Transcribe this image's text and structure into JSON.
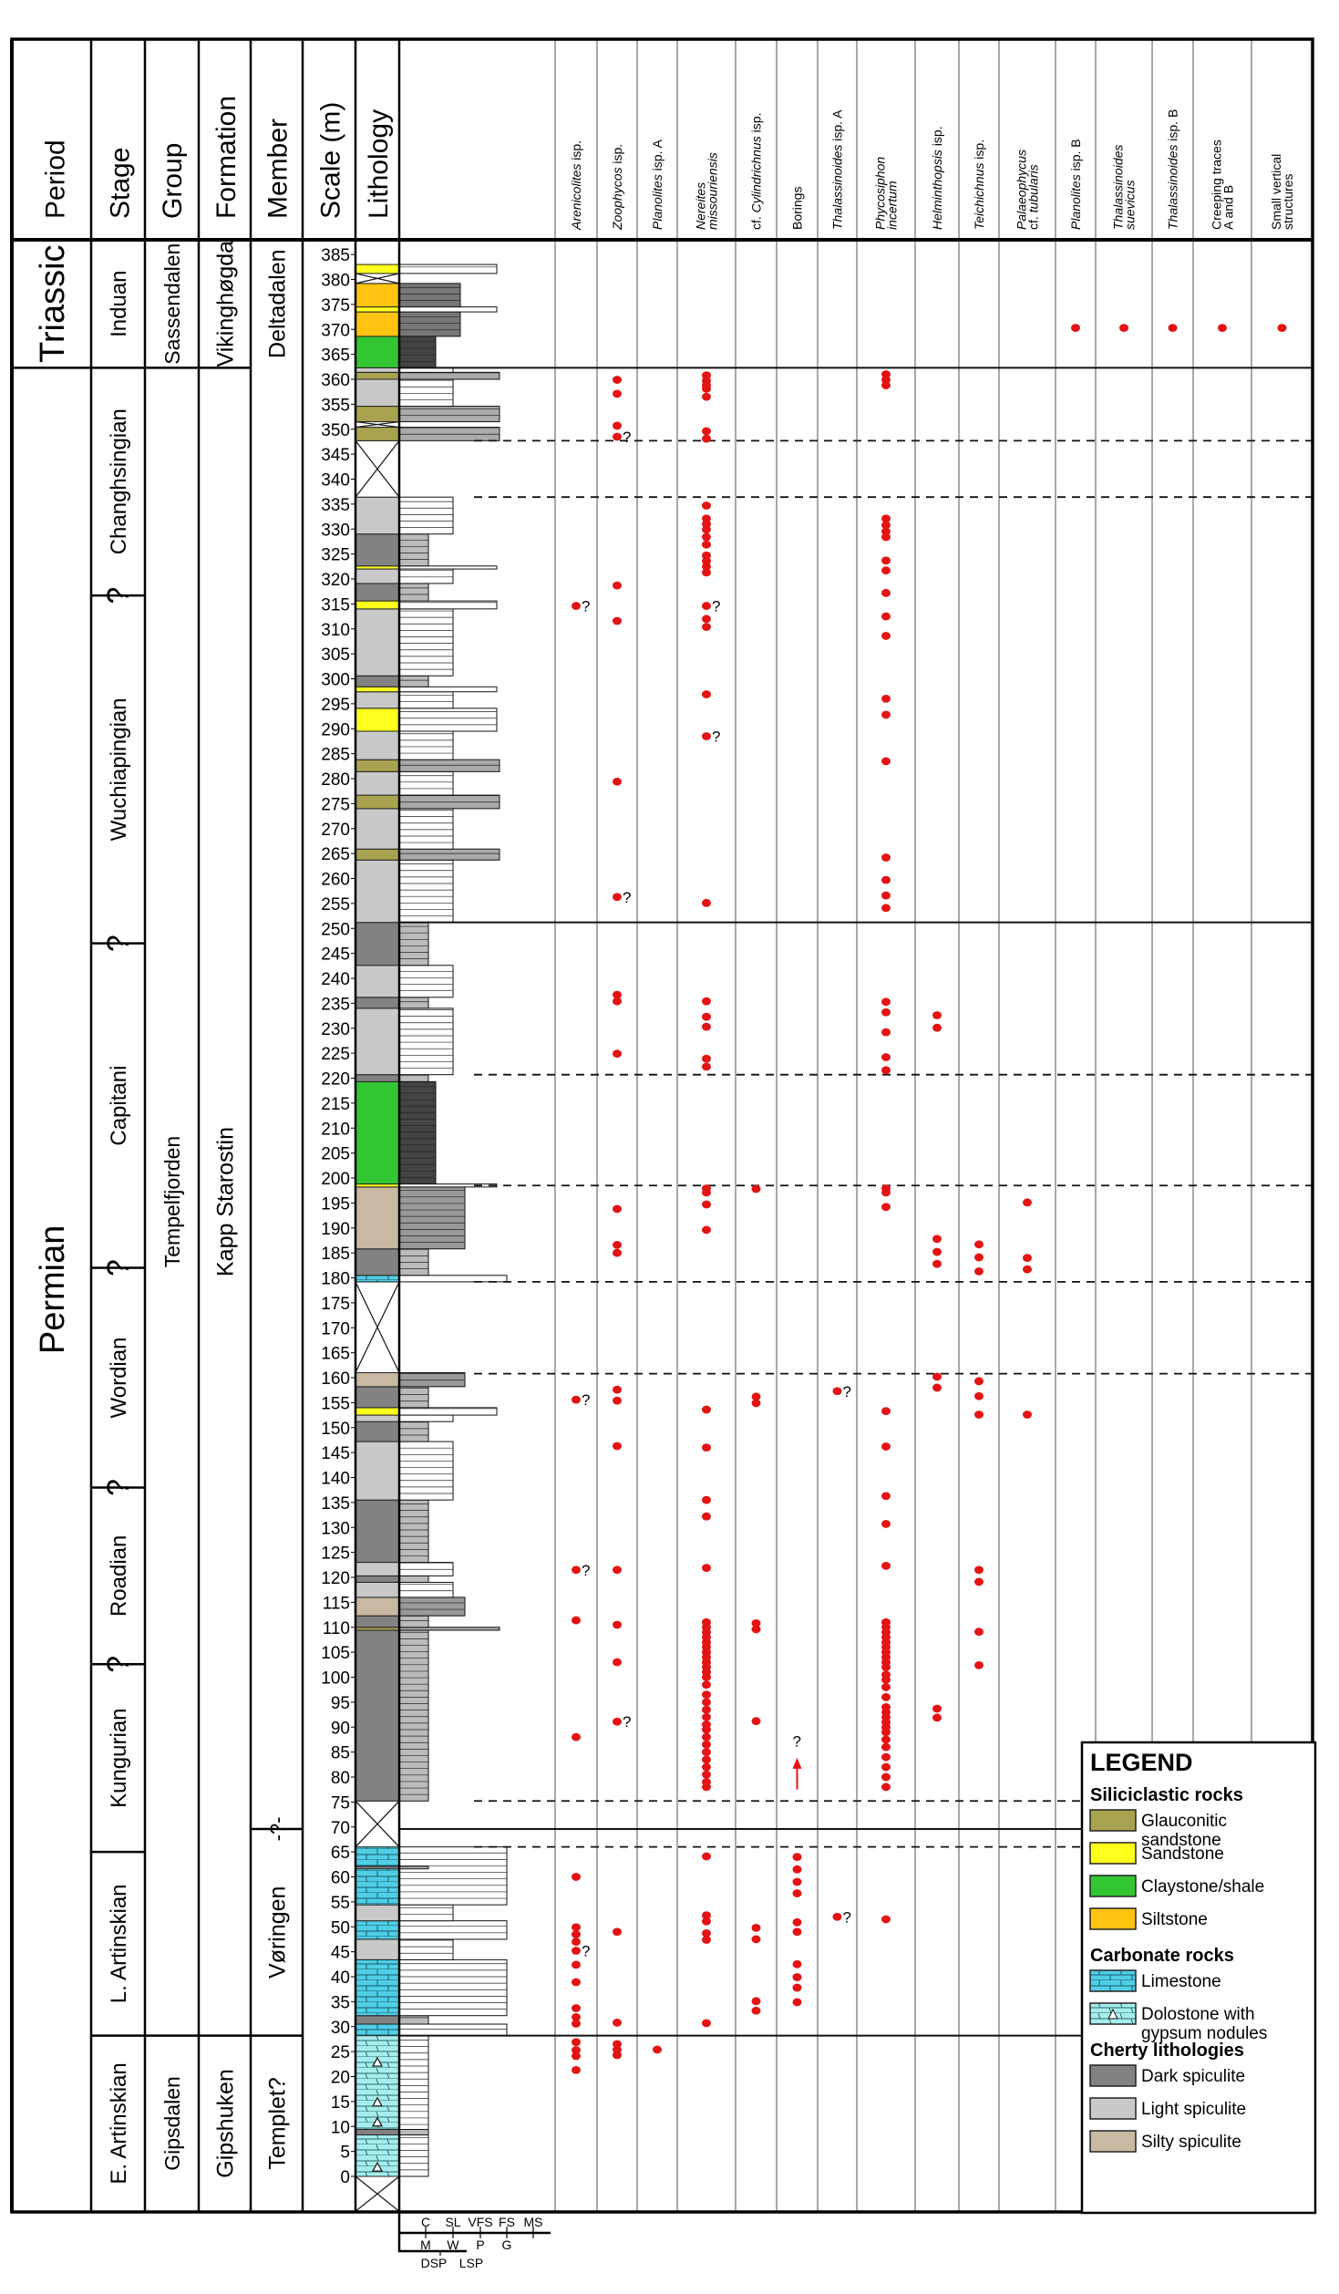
{
  "header": {
    "period": "Period",
    "stage": "Stage",
    "group": "Group",
    "formation": "Formation",
    "member": "Member",
    "scale": "Scale (m)",
    "lithology": "Lithology"
  },
  "uncertain_marker": "?",
  "periods": [
    {
      "name": "Triassic",
      "base": 362.3,
      "top": 388
    },
    {
      "name": "Permian",
      "base": -7,
      "top": 362.3
    }
  ],
  "stages": [
    {
      "name": "Induan",
      "base": 362.3,
      "top": 388
    },
    {
      "name": "Changhsingian",
      "base": 316.7,
      "top": 362.3
    },
    {
      "name": "Wuchiapingian",
      "base": 247,
      "top": 316.7
    },
    {
      "name": "Capitani",
      "base": 182,
      "top": 247
    },
    {
      "name": "Wordian",
      "base": 138,
      "top": 182
    },
    {
      "name": "Roadian",
      "base": 102.6,
      "top": 138
    },
    {
      "name": "Kungurian",
      "base": 65,
      "top": 102.6
    },
    {
      "name": "L. Artinskian",
      "base": 28.2,
      "top": 65
    },
    {
      "name": "E. Artinskian",
      "base": -7,
      "top": 28.2
    }
  ],
  "uncertain_stage_boundaries": [
    316.7,
    247,
    182,
    138,
    102.6
  ],
  "groups": [
    {
      "name": "Sassendalen",
      "base": 362.3,
      "top": 388
    },
    {
      "name": "Tempelfjorden",
      "base": 28.2,
      "top": 362.3
    },
    {
      "name": "Gipsdalen",
      "base": -7,
      "top": 28.2
    }
  ],
  "formations": [
    {
      "name": "Vikinghøgda",
      "base": 362.3,
      "top": 388
    },
    {
      "name": "Kapp Starostin",
      "base": 28.2,
      "top": 362.3
    },
    {
      "name": "Gipshuken",
      "base": -7,
      "top": 28.2
    }
  ],
  "members": [
    {
      "name": "Deltadalen",
      "base": 362.3,
      "top": 388
    },
    {
      "name": "Vøringen",
      "base": 28.2,
      "top": 69.6
    },
    {
      "name": "Templet?",
      "base": -7,
      "top": 28.2
    }
  ],
  "member_uncertain_top": {
    "label": "-?-",
    "at": 69.6
  },
  "scale": {
    "min": 0,
    "max": 385,
    "step": 5
  },
  "lithology_colors": {
    "glauconitic": "#a9a250",
    "sandstone": "#ffff1e",
    "claystone": "#33c633",
    "siltstone": "#ffc312",
    "limestone": "#4fcfe6",
    "dolostone": "#a6eeee",
    "dark": "#828282",
    "light": "#c9c9c9",
    "silty": "#c9b9a2",
    "unexposed": "#ffffff"
  },
  "lithology": [
    [
      -7,
      0,
      "unexposed"
    ],
    [
      0,
      28.2,
      "dolostone"
    ],
    [
      8.3,
      9.4,
      "dark"
    ],
    [
      28.2,
      30.5,
      "limestone"
    ],
    [
      30.5,
      32.2,
      "dark"
    ],
    [
      32.2,
      43.4,
      "limestone"
    ],
    [
      43.4,
      47.5,
      "light"
    ],
    [
      47.5,
      51.2,
      "limestone"
    ],
    [
      51.2,
      54.4,
      "light"
    ],
    [
      54.4,
      66,
      "limestone"
    ],
    [
      61.6,
      62.1,
      "dark"
    ],
    [
      66,
      75.2,
      "unexposed"
    ],
    [
      75.2,
      109.4,
      "dark"
    ],
    [
      109.4,
      110,
      "glauconitic"
    ],
    [
      110,
      112.3,
      "dark"
    ],
    [
      112.3,
      116,
      "silty"
    ],
    [
      116,
      119,
      "light"
    ],
    [
      119,
      120.3,
      "dark"
    ],
    [
      120.3,
      123,
      "light"
    ],
    [
      123,
      135.5,
      "dark"
    ],
    [
      135.5,
      147.2,
      "light"
    ],
    [
      147.2,
      151.2,
      "dark"
    ],
    [
      151.2,
      152.5,
      "light"
    ],
    [
      152.5,
      154,
      "sandstone"
    ],
    [
      154,
      158.2,
      "dark"
    ],
    [
      158.2,
      161,
      "silty"
    ],
    [
      161,
      179.2,
      "unexposed"
    ],
    [
      179.2,
      180.5,
      "limestone"
    ],
    [
      180.5,
      185.8,
      "dark"
    ],
    [
      185.8,
      198.2,
      "silty"
    ],
    [
      198.2,
      198.8,
      "sandstone"
    ],
    [
      198.8,
      219.3,
      "claystone"
    ],
    [
      219.3,
      220.7,
      "dark"
    ],
    [
      220.7,
      234,
      "light"
    ],
    [
      234,
      236.2,
      "dark"
    ],
    [
      236.2,
      242.6,
      "light"
    ],
    [
      242.6,
      251.2,
      "dark"
    ],
    [
      251.2,
      263.7,
      "light"
    ],
    [
      263.7,
      265.9,
      "glauconitic"
    ],
    [
      265.9,
      274,
      "light"
    ],
    [
      274,
      276.7,
      "glauconitic"
    ],
    [
      276.7,
      281.4,
      "light"
    ],
    [
      281.4,
      283.8,
      "glauconitic"
    ],
    [
      283.8,
      289.5,
      "light"
    ],
    [
      289.5,
      294.1,
      "sandstone"
    ],
    [
      294.1,
      297.4,
      "light"
    ],
    [
      297.4,
      298.4,
      "sandstone"
    ],
    [
      298.4,
      300.6,
      "dark"
    ],
    [
      300.6,
      314,
      "light"
    ],
    [
      314,
      315.6,
      "sandstone"
    ],
    [
      315.6,
      319.1,
      "dark"
    ],
    [
      319.1,
      322,
      "light"
    ],
    [
      322,
      322.6,
      "sandstone"
    ],
    [
      322.6,
      329,
      "dark"
    ],
    [
      329,
      336.4,
      "light"
    ],
    [
      336.4,
      347.7,
      "unexposed"
    ],
    [
      347.7,
      350.4,
      "glauconitic"
    ],
    [
      350.4,
      351.5,
      "unexposed"
    ],
    [
      351.5,
      354.6,
      "glauconitic"
    ],
    [
      354.6,
      360,
      "light"
    ],
    [
      360,
      361.4,
      "glauconitic"
    ],
    [
      361.4,
      362.3,
      "light"
    ],
    [
      362.3,
      368.6,
      "claystone"
    ],
    [
      368.6,
      373.5,
      "siltstone"
    ],
    [
      373.5,
      374.5,
      "sandstone"
    ],
    [
      374.5,
      379.2,
      "siltstone"
    ],
    [
      379.2,
      381.2,
      "unexposed"
    ],
    [
      381.2,
      383,
      "sandstone"
    ]
  ],
  "boundaries": {
    "solid": [
      362.3,
      251.2,
      69.6,
      28.2
    ],
    "dashed": [
      347.7,
      336.4,
      220.7,
      198.5,
      179.2,
      160.8,
      75.2,
      66
    ]
  },
  "traces": [
    {
      "label": [
        [
          [
            "Arenicolites",
            1
          ],
          [
            " isp.",
            0
          ]
        ]
      ],
      "dots": [
        314.6,
        155.6,
        121.5,
        111.4,
        88,
        60,
        49.9,
        48.5,
        47,
        45.2,
        42.4,
        38.9,
        33.7,
        31.9,
        30.6,
        26.9,
        25.3,
        24.1,
        21.3
      ],
      "uncertain": [
        314.6,
        155.6,
        121.5,
        45.2
      ]
    },
    {
      "label": [
        [
          [
            "Zoophycos",
            1
          ],
          [
            " isp.",
            0
          ]
        ]
      ],
      "dots": [
        359.9,
        357.1,
        350.7,
        348.5,
        318.7,
        311.6,
        279.4,
        256.3,
        236.7,
        235.4,
        224.9,
        193.8,
        186.6,
        185,
        157.6,
        155.4,
        146.3,
        121.5,
        110.5,
        103,
        91.1,
        49,
        30.8,
        26.5,
        25.4,
        24.3
      ],
      "uncertain": [
        348.5,
        256.3,
        91.1
      ]
    },
    {
      "label": [
        [
          [
            "Planolites",
            1
          ],
          [
            " isp. A",
            0
          ]
        ]
      ],
      "dots": [
        25.4
      ],
      "uncertain": []
    },
    {
      "label": [
        [
          [
            "Nereites",
            1
          ]
        ],
        [
          [
            "missouriensis",
            1
          ]
        ]
      ],
      "dots": [
        360.8,
        359.7,
        358.8,
        358.1,
        356.5,
        349.6,
        348.1,
        334.7,
        332.1,
        331,
        329.9,
        328.4,
        326.9,
        324.7,
        323.6,
        322.5,
        321.3,
        314.6,
        312,
        310.4,
        296.9,
        288.5,
        255.1,
        235.4,
        232.3,
        230.3,
        223.9,
        222.3,
        197.9,
        197.1,
        194.7,
        189.6,
        153.6,
        146,
        135.5,
        132.2,
        121.9,
        111,
        110,
        109,
        108,
        107,
        106,
        105,
        104,
        103,
        102,
        101,
        100,
        98.5,
        96.5,
        95,
        93.5,
        92,
        90.5,
        89.5,
        88,
        86.5,
        85,
        83.5,
        82,
        80.5,
        79,
        78,
        64.1,
        52.3,
        51.1,
        48.7,
        47.4,
        30.7
      ],
      "uncertain": [
        314.6,
        288.5
      ]
    },
    {
      "label": [
        [
          [
            "cf. ",
            0
          ],
          [
            "Cylindrichnus",
            1
          ],
          [
            " isp.",
            0
          ]
        ]
      ],
      "dots": [
        197.8,
        156.2,
        154.9,
        110.8,
        109.6,
        91.2,
        49.8,
        47.5,
        35.1,
        33.2
      ],
      "uncertain": []
    },
    {
      "label": [
        [
          [
            "Borings",
            0
          ]
        ]
      ],
      "dots": [
        64,
        61.5,
        59,
        56.7,
        50.9,
        49,
        42.5,
        39.9,
        37.8,
        34.9
      ],
      "uncertain": [],
      "arrow": {
        "from": 77.5,
        "to": 83.5
      }
    },
    {
      "label": [
        [
          [
            "Thalassinoides",
            1
          ],
          [
            " isp. A",
            0
          ]
        ]
      ],
      "dots": [
        157.3,
        52
      ],
      "uncertain": [
        157.3,
        52
      ]
    },
    {
      "label": [
        [
          [
            "Phycosiphon",
            1
          ]
        ],
        [
          [
            "incertum",
            1
          ]
        ]
      ],
      "dots": [
        361,
        359.9,
        358.8,
        332.1,
        330.8,
        329.5,
        328.4,
        323.7,
        321.7,
        317.2,
        312.5,
        308.6,
        296,
        292.8,
        283.5,
        264.2,
        259.7,
        256.6,
        254.1,
        235.3,
        233.2,
        229.2,
        224.2,
        221.6,
        197.9,
        197.1,
        194.2,
        153.3,
        146.2,
        136.3,
        130.7,
        122.3,
        111,
        110,
        109,
        108,
        107,
        106,
        105,
        104,
        103,
        102,
        100.5,
        99.5,
        98,
        96,
        94,
        93,
        92,
        91,
        90,
        89,
        87.5,
        86,
        84,
        82,
        80,
        78,
        51.5
      ],
      "uncertain": []
    },
    {
      "label": [
        [
          [
            "Helminthopsis",
            1
          ],
          [
            " isp.",
            0
          ]
        ]
      ],
      "dots": [
        232.6,
        230.1,
        187.8,
        185.2,
        182.8,
        160.2,
        158,
        93.7,
        91.9
      ],
      "uncertain": []
    },
    {
      "label": [
        [
          [
            "Teichichnus",
            1
          ],
          [
            " isp.",
            0
          ]
        ]
      ],
      "dots": [
        186.7,
        184.1,
        181.3,
        159.3,
        156.3,
        152.6,
        121.5,
        119.1,
        109.1,
        102.4
      ],
      "uncertain": []
    },
    {
      "label": [
        [
          [
            "Palaeophycus",
            1
          ]
        ],
        [
          [
            "cf. ",
            0
          ],
          [
            "tubularis",
            1
          ]
        ]
      ],
      "dots": [
        195.1,
        184,
        181.7,
        152.6
      ],
      "uncertain": []
    },
    {
      "label": [
        [
          [
            "Planolites",
            1
          ],
          [
            " isp. B",
            0
          ]
        ]
      ],
      "dots": [
        370.3
      ],
      "uncertain": []
    },
    {
      "label": [
        [
          [
            "Thalassinoides",
            1
          ]
        ],
        [
          [
            "suevicus",
            1
          ]
        ]
      ],
      "dots": [
        370.3
      ],
      "uncertain": []
    },
    {
      "label": [
        [
          [
            "Thalassinoides",
            1
          ],
          [
            " isp. B",
            0
          ]
        ]
      ],
      "dots": [
        370.3
      ],
      "uncertain": []
    },
    {
      "label": [
        [
          [
            "Creeping traces",
            0
          ]
        ],
        [
          [
            "A and B",
            0
          ]
        ]
      ],
      "dots": [
        370.3
      ],
      "uncertain": []
    },
    {
      "label": [
        [
          [
            "Small vertical",
            0
          ]
        ],
        [
          [
            "structures",
            0
          ]
        ]
      ],
      "dots": [
        370.3
      ],
      "uncertain": []
    }
  ],
  "dot_color": "#e31414",
  "grain_axis": {
    "row1": [
      "C",
      "SL",
      "VFS",
      "FS",
      "MS"
    ],
    "row2": [
      "M",
      "W",
      "P",
      "G"
    ],
    "row3": [
      "DSP",
      "LSP"
    ]
  },
  "legend": {
    "title": "LEGEND",
    "groups": [
      {
        "title": "Siliciclastic rocks",
        "items": [
          {
            "key": "glauconitic",
            "label": [
              "Glauconitic",
              "sandstone"
            ]
          },
          {
            "key": "sandstone",
            "label": [
              "Sandstone"
            ]
          },
          {
            "key": "claystone",
            "label": [
              "Claystone/shale"
            ]
          },
          {
            "key": "siltstone",
            "label": [
              "Siltstone"
            ]
          }
        ]
      },
      {
        "title": "Carbonate rocks",
        "items": [
          {
            "key": "limestone",
            "label": [
              "Limestone"
            ]
          },
          {
            "key": "dolostone",
            "label": [
              "Dolostone with",
              "gypsum nodules"
            ]
          }
        ]
      },
      {
        "title": "Cherty lithologies",
        "items": [
          {
            "key": "dark",
            "label": [
              "Dark spiculite"
            ]
          },
          {
            "key": "light",
            "label": [
              "Light spiculite"
            ]
          },
          {
            "key": "silty",
            "label": [
              "Silty spiculite"
            ]
          }
        ]
      }
    ]
  }
}
